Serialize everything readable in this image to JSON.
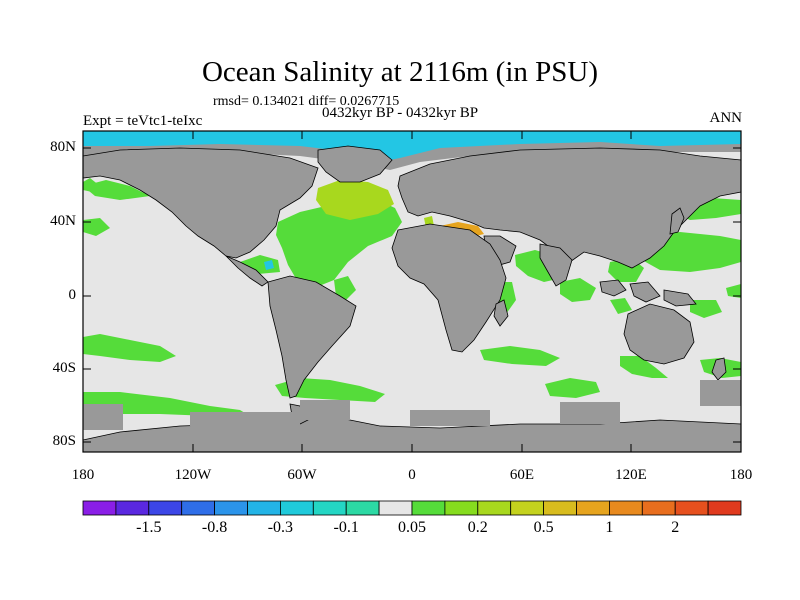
{
  "title": "Ocean Salinity at 2116m (in PSU)",
  "stats_line": "rmsd= 0.134021 diff= 0.0267715",
  "period": "0432kyr BP - 0432kyr BP",
  "experiment": "Expt = teVtc1-teIxc",
  "season": "ANN",
  "lat_ticks": [
    "80N",
    "40N",
    "0",
    "40S",
    "80S"
  ],
  "lon_ticks": [
    "180",
    "120W",
    "60W",
    "0",
    "60E",
    "120E",
    "180"
  ],
  "colorbar": {
    "colors": [
      "#8a1ee6",
      "#5a28e0",
      "#3c46e6",
      "#2f6ee8",
      "#2b94ea",
      "#23b4e6",
      "#20cadb",
      "#24d6c4",
      "#2cd9a4",
      "#e6e6e6",
      "#55dc3a",
      "#86dc1e",
      "#a8d81e",
      "#c4d21e",
      "#d8bc1e",
      "#e6a41e",
      "#e88a1e",
      "#e86e1e",
      "#e6501e",
      "#e03a1e"
    ],
    "labels": [
      "-1.5",
      "-0.8",
      "-0.3",
      "-0.1",
      "0.05",
      "0.2",
      "0.5",
      "1",
      "2"
    ]
  },
  "colors": {
    "land": "#999999",
    "ocean_near_zero": "#e6e6e6",
    "positive_small": "#55dc3a",
    "positive_mid": "#a8d81e",
    "positive_high": "#e6a41e",
    "negative_mid": "#23c6e4",
    "negative_large": "#6a2ee0"
  }
}
